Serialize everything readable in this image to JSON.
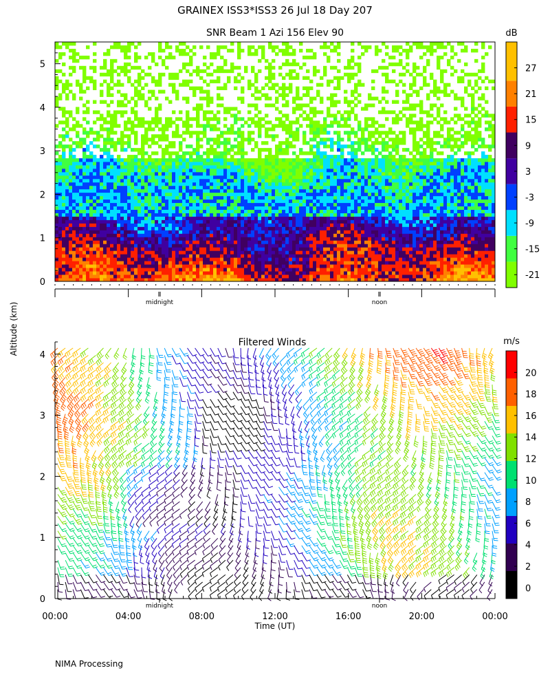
{
  "title": "GRAINEX ISS3*ISS3  26 Jul 18 Day 207",
  "footer": "NIMA Processing",
  "colors": {
    "snr": [
      "#80ff00",
      "#40ff40",
      "#00e0ff",
      "#0040ff",
      "#4000a0",
      "#400060",
      "#ff2000",
      "#ff8000",
      "#ffc000"
    ],
    "wind": [
      "#000000",
      "#300050",
      "#2000c0",
      "#00a0ff",
      "#00e070",
      "#80e000",
      "#ffc000",
      "#ff6000",
      "#ff0000"
    ]
  },
  "chart_data": [
    {
      "type": "heatmap",
      "title": "SNR Beam 1 Azi 156 Elev 90",
      "ylabel": "Altitude (km)",
      "ylim": [
        0,
        5.5
      ],
      "yticks": [
        "0",
        "1",
        "2",
        "3",
        "4",
        "5"
      ],
      "xlim": [
        0,
        24
      ],
      "day_labels": [
        {
          "x": 5.7,
          "text": "midnight"
        },
        {
          "x": 17.7,
          "text": "noon"
        }
      ],
      "colorbar": {
        "unit": "dB",
        "ticks": [
          "-21",
          "-15",
          "-9",
          "-3",
          "3",
          "9",
          "15",
          "21",
          "27"
        ],
        "range": [
          -24,
          33
        ]
      }
    },
    {
      "type": "scatter",
      "title": "Filtered Winds",
      "ylabel": "Altitude (km)",
      "xlabel": "Time (UT)",
      "ylim": [
        0,
        4.2
      ],
      "yticks": [
        "0",
        "1",
        "2",
        "3",
        "4"
      ],
      "xlim": [
        0,
        24
      ],
      "xticks": [
        "00:00",
        "04:00",
        "08:00",
        "12:00",
        "16:00",
        "20:00",
        "00:00"
      ],
      "day_labels": [
        {
          "x": 5.7,
          "text": "midnight"
        },
        {
          "x": 17.7,
          "text": "noon"
        }
      ],
      "colorbar": {
        "unit": "m/s",
        "ticks": [
          "0",
          "2",
          "4",
          "6",
          "8",
          "10",
          "12",
          "14",
          "16",
          "18",
          "20"
        ],
        "range": [
          -1,
          22
        ]
      }
    }
  ]
}
